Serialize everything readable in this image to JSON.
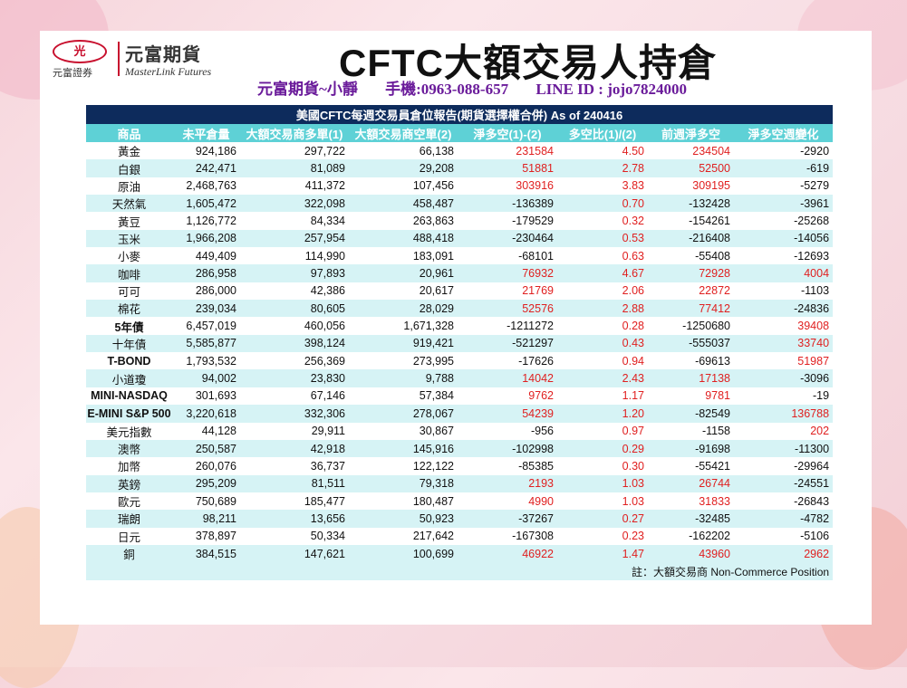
{
  "logo": {
    "badge": "光",
    "company_cn": "元富期貨",
    "company_sub": "元富證券",
    "company_en": "MasterLink Futures"
  },
  "title": "CFTC大額交易人持倉",
  "contact": {
    "name": "元富期貨~小靜",
    "phone": "手機:0963-088-657",
    "line": "LINE ID : jojo7824000"
  },
  "table": {
    "caption": "美國CFTC每週交易員倉位報告(期貨選擇權合併) As of  240416",
    "headers": [
      "商品",
      "未平倉量",
      "大額交易商多單(1)",
      "大額交易商空單(2)",
      "淨多空(1)-(2)",
      "多空比(1)/(2)",
      "前週淨多空",
      "淨多空週變化"
    ],
    "rows": [
      {
        "name": "黃金",
        "bold": false,
        "oi": "924,186",
        "long": "297,722",
        "short": "66,138",
        "net": "231584",
        "ratio": "4.50",
        "prev": "234504",
        "chg": "-2920",
        "net_red": true,
        "ratio_red": true,
        "prev_red": true,
        "chg_red": false
      },
      {
        "name": "白銀",
        "bold": false,
        "oi": "242,471",
        "long": "81,089",
        "short": "29,208",
        "net": "51881",
        "ratio": "2.78",
        "prev": "52500",
        "chg": "-619",
        "net_red": true,
        "ratio_red": true,
        "prev_red": true,
        "chg_red": false
      },
      {
        "name": "原油",
        "bold": false,
        "oi": "2,468,763",
        "long": "411,372",
        "short": "107,456",
        "net": "303916",
        "ratio": "3.83",
        "prev": "309195",
        "chg": "-5279",
        "net_red": true,
        "ratio_red": true,
        "prev_red": true,
        "chg_red": false
      },
      {
        "name": "天然氣",
        "bold": false,
        "oi": "1,605,472",
        "long": "322,098",
        "short": "458,487",
        "net": "-136389",
        "ratio": "0.70",
        "prev": "-132428",
        "chg": "-3961",
        "net_red": false,
        "ratio_red": true,
        "prev_red": false,
        "chg_red": false
      },
      {
        "name": "黃豆",
        "bold": false,
        "oi": "1,126,772",
        "long": "84,334",
        "short": "263,863",
        "net": "-179529",
        "ratio": "0.32",
        "prev": "-154261",
        "chg": "-25268",
        "net_red": false,
        "ratio_red": true,
        "prev_red": false,
        "chg_red": false
      },
      {
        "name": "玉米",
        "bold": false,
        "oi": "1,966,208",
        "long": "257,954",
        "short": "488,418",
        "net": "-230464",
        "ratio": "0.53",
        "prev": "-216408",
        "chg": "-14056",
        "net_red": false,
        "ratio_red": true,
        "prev_red": false,
        "chg_red": false
      },
      {
        "name": "小麥",
        "bold": false,
        "oi": "449,409",
        "long": "114,990",
        "short": "183,091",
        "net": "-68101",
        "ratio": "0.63",
        "prev": "-55408",
        "chg": "-12693",
        "net_red": false,
        "ratio_red": true,
        "prev_red": false,
        "chg_red": false
      },
      {
        "name": "咖啡",
        "bold": false,
        "oi": "286,958",
        "long": "97,893",
        "short": "20,961",
        "net": "76932",
        "ratio": "4.67",
        "prev": "72928",
        "chg": "4004",
        "net_red": true,
        "ratio_red": true,
        "prev_red": true,
        "chg_red": true
      },
      {
        "name": "可可",
        "bold": false,
        "oi": "286,000",
        "long": "42,386",
        "short": "20,617",
        "net": "21769",
        "ratio": "2.06",
        "prev": "22872",
        "chg": "-1103",
        "net_red": true,
        "ratio_red": true,
        "prev_red": true,
        "chg_red": false
      },
      {
        "name": "棉花",
        "bold": false,
        "oi": "239,034",
        "long": "80,605",
        "short": "28,029",
        "net": "52576",
        "ratio": "2.88",
        "prev": "77412",
        "chg": "-24836",
        "net_red": true,
        "ratio_red": true,
        "prev_red": true,
        "chg_red": false
      },
      {
        "name": "5年債",
        "bold": true,
        "oi": "6,457,019",
        "long": "460,056",
        "short": "1,671,328",
        "net": "-1211272",
        "ratio": "0.28",
        "prev": "-1250680",
        "chg": "39408",
        "net_red": false,
        "ratio_red": true,
        "prev_red": false,
        "chg_red": true
      },
      {
        "name": "十年債",
        "bold": false,
        "oi": "5,585,877",
        "long": "398,124",
        "short": "919,421",
        "net": "-521297",
        "ratio": "0.43",
        "prev": "-555037",
        "chg": "33740",
        "net_red": false,
        "ratio_red": true,
        "prev_red": false,
        "chg_red": true
      },
      {
        "name": "T-BOND",
        "bold": true,
        "oi": "1,793,532",
        "long": "256,369",
        "short": "273,995",
        "net": "-17626",
        "ratio": "0.94",
        "prev": "-69613",
        "chg": "51987",
        "net_red": false,
        "ratio_red": true,
        "prev_red": false,
        "chg_red": true
      },
      {
        "name": "小道瓊",
        "bold": false,
        "oi": "94,002",
        "long": "23,830",
        "short": "9,788",
        "net": "14042",
        "ratio": "2.43",
        "prev": "17138",
        "chg": "-3096",
        "net_red": true,
        "ratio_red": true,
        "prev_red": true,
        "chg_red": false
      },
      {
        "name": "MINI-NASDAQ",
        "bold": true,
        "oi": "301,693",
        "long": "67,146",
        "short": "57,384",
        "net": "9762",
        "ratio": "1.17",
        "prev": "9781",
        "chg": "-19",
        "net_red": true,
        "ratio_red": true,
        "prev_red": true,
        "chg_red": false
      },
      {
        "name": "E-MINI S&P 500",
        "bold": true,
        "oi": "3,220,618",
        "long": "332,306",
        "short": "278,067",
        "net": "54239",
        "ratio": "1.20",
        "prev": "-82549",
        "chg": "136788",
        "net_red": true,
        "ratio_red": true,
        "prev_red": false,
        "chg_red": true
      },
      {
        "name": "美元指數",
        "bold": false,
        "oi": "44,128",
        "long": "29,911",
        "short": "30,867",
        "net": "-956",
        "ratio": "0.97",
        "prev": "-1158",
        "chg": "202",
        "net_red": false,
        "ratio_red": true,
        "prev_red": false,
        "chg_red": true
      },
      {
        "name": "澳幣",
        "bold": false,
        "oi": "250,587",
        "long": "42,918",
        "short": "145,916",
        "net": "-102998",
        "ratio": "0.29",
        "prev": "-91698",
        "chg": "-11300",
        "net_red": false,
        "ratio_red": true,
        "prev_red": false,
        "chg_red": false
      },
      {
        "name": "加幣",
        "bold": false,
        "oi": "260,076",
        "long": "36,737",
        "short": "122,122",
        "net": "-85385",
        "ratio": "0.30",
        "prev": "-55421",
        "chg": "-29964",
        "net_red": false,
        "ratio_red": true,
        "prev_red": false,
        "chg_red": false
      },
      {
        "name": "英鎊",
        "bold": false,
        "oi": "295,209",
        "long": "81,511",
        "short": "79,318",
        "net": "2193",
        "ratio": "1.03",
        "prev": "26744",
        "chg": "-24551",
        "net_red": true,
        "ratio_red": true,
        "prev_red": true,
        "chg_red": false
      },
      {
        "name": "歐元",
        "bold": false,
        "oi": "750,689",
        "long": "185,477",
        "short": "180,487",
        "net": "4990",
        "ratio": "1.03",
        "prev": "31833",
        "chg": "-26843",
        "net_red": true,
        "ratio_red": true,
        "prev_red": true,
        "chg_red": false
      },
      {
        "name": "瑞朗",
        "bold": false,
        "oi": "98,211",
        "long": "13,656",
        "short": "50,923",
        "net": "-37267",
        "ratio": "0.27",
        "prev": "-32485",
        "chg": "-4782",
        "net_red": false,
        "ratio_red": true,
        "prev_red": false,
        "chg_red": false
      },
      {
        "name": "日元",
        "bold": false,
        "oi": "378,897",
        "long": "50,334",
        "short": "217,642",
        "net": "-167308",
        "ratio": "0.23",
        "prev": "-162202",
        "chg": "-5106",
        "net_red": false,
        "ratio_red": true,
        "prev_red": false,
        "chg_red": false
      },
      {
        "name": "銅",
        "bold": false,
        "oi": "384,515",
        "long": "147,621",
        "short": "100,699",
        "net": "46922",
        "ratio": "1.47",
        "prev": "43960",
        "chg": "2962",
        "net_red": true,
        "ratio_red": true,
        "prev_red": true,
        "chg_red": true
      }
    ],
    "footnote": "註：大額交易商 Non-Commerce Position"
  },
  "colors": {
    "header_dark": "#0d2b5c",
    "header_teal": "#5ed1d6",
    "row_alt": "#d6f3f5",
    "positive_red": "#e02020",
    "contact_purple": "#6a1b9a",
    "brand_red": "#c8102e"
  }
}
